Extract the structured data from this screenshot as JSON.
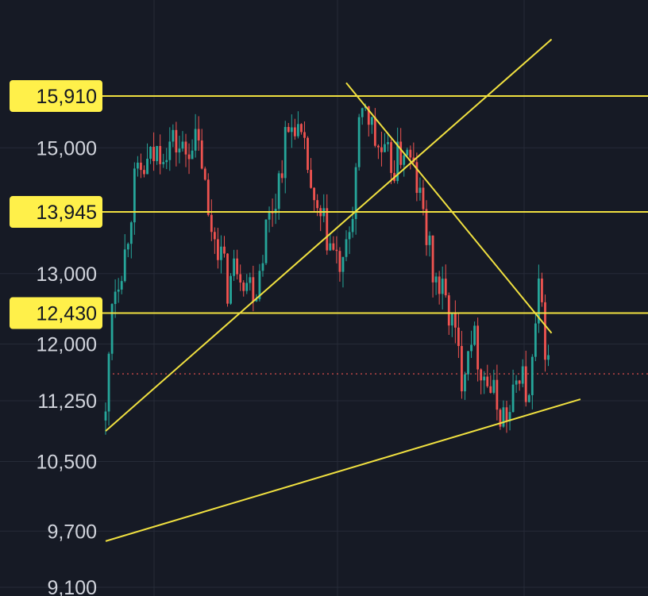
{
  "chart_data": {
    "type": "candlestick",
    "y_axis_tick_labels": [
      "15,000",
      "13,000",
      "12,000",
      "11,250",
      "10,500",
      "9,700",
      "9,100"
    ],
    "y_axis_tick_values": [
      15000,
      13000,
      12000,
      11250,
      10500,
      9700,
      9100
    ],
    "y_axis_scale": "log",
    "y_range_visible": [
      9070,
      16900
    ],
    "grid": true,
    "colors": {
      "background": "#161a25",
      "grid": "#262b38",
      "up": "#26a69a",
      "down": "#ef5350",
      "line": "#f0e040",
      "badge": "#fff04a",
      "tick_text": "#d1d4dc",
      "badge_text": "#131722",
      "current_price_line": "#ef5350"
    },
    "horizontal_levels": [
      {
        "label": "15,910",
        "value": 15910
      },
      {
        "label": "13,945",
        "value": 13945
      },
      {
        "label": "12,430",
        "value": 12430
      }
    ],
    "current_price_dotted_line": 11600,
    "trendlines": [
      {
        "name": "rising-support",
        "from": {
          "bar": 0,
          "value": 10870
        },
        "to": {
          "bar": 139,
          "value": 16970
        }
      },
      {
        "name": "falling-resistance",
        "from": {
          "bar": 75,
          "value": 16150
        },
        "to": {
          "bar": 139,
          "value": 12150
        }
      },
      {
        "name": "long-term-support",
        "from": {
          "bar": 0,
          "value": 9590
        },
        "to": {
          "bar": 148,
          "value": 11270
        }
      }
    ],
    "price_path_anchors": [
      [
        0,
        11000
      ],
      [
        2,
        12700
      ],
      [
        6,
        13300
      ],
      [
        9,
        14400
      ],
      [
        13,
        14700
      ],
      [
        17,
        15000
      ],
      [
        21,
        15100
      ],
      [
        25,
        14900
      ],
      [
        27,
        15200
      ],
      [
        30,
        14800
      ],
      [
        32,
        13800
      ],
      [
        35,
        13500
      ],
      [
        38,
        12800
      ],
      [
        41,
        13200
      ],
      [
        44,
        12900
      ],
      [
        47,
        12800
      ],
      [
        50,
        13700
      ],
      [
        53,
        14200
      ],
      [
        56,
        15100
      ],
      [
        59,
        15500
      ],
      [
        61,
        15000
      ],
      [
        63,
        14700
      ],
      [
        65,
        13900
      ],
      [
        68,
        13700
      ],
      [
        71,
        13300
      ],
      [
        74,
        13000
      ],
      [
        77,
        14000
      ],
      [
        79,
        15200
      ],
      [
        81,
        15800
      ],
      [
        84,
        15100
      ],
      [
        87,
        14800
      ],
      [
        90,
        14700
      ],
      [
        93,
        15000
      ],
      [
        96,
        14600
      ],
      [
        99,
        13900
      ],
      [
        102,
        13000
      ],
      [
        105,
        12700
      ],
      [
        108,
        12300
      ],
      [
        111,
        11600
      ],
      [
        114,
        12200
      ],
      [
        117,
        11700
      ],
      [
        120,
        11400
      ],
      [
        123,
        11100
      ],
      [
        126,
        11050
      ],
      [
        129,
        11700
      ],
      [
        132,
        11200
      ],
      [
        135,
        12700
      ],
      [
        138,
        11700
      ]
    ]
  }
}
